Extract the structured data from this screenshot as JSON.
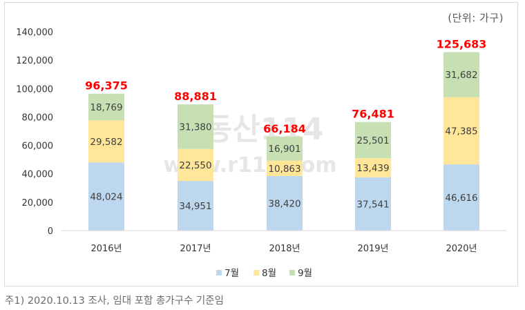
{
  "chart_data": {
    "type": "bar",
    "stacked": true,
    "unit": "(단위: 가구)",
    "categories": [
      "2016년",
      "2017년",
      "2018년",
      "2019년",
      "2020년"
    ],
    "series": [
      {
        "name": "7월",
        "color": "#bdd7ee",
        "values": [
          48024,
          34951,
          38420,
          37541,
          46616
        ]
      },
      {
        "name": "8월",
        "color": "#ffe699",
        "values": [
          29582,
          22550,
          10863,
          13439,
          47385
        ]
      },
      {
        "name": "9월",
        "color": "#c6e0b4",
        "values": [
          18769,
          31380,
          16901,
          25501,
          31682
        ]
      }
    ],
    "totals": [
      96375,
      88881,
      66184,
      76481,
      125683
    ],
    "ylim": [
      0,
      140000
    ],
    "yticks": [
      0,
      20000,
      40000,
      60000,
      80000,
      100000,
      120000,
      140000
    ],
    "total_color": "#ff0000",
    "grid": false,
    "legend_position": "bottom"
  },
  "watermark": {
    "line1": "부동산114",
    "line2": "www.r114.com"
  },
  "footnote": "주1) 2020.10.13 조사, 임대 포함 총가구수 기준임"
}
